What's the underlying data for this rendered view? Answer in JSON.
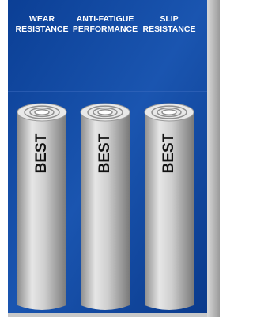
{
  "columns": [
    {
      "title": [
        "WEAR",
        "RESISTANCE"
      ],
      "label": "BEST"
    },
    {
      "title": [
        "ANTI-FATIGUE",
        "PERFORMANCE"
      ],
      "label": "BEST"
    },
    {
      "title": [
        "SLIP",
        "RESISTANCE"
      ],
      "label": "BEST"
    }
  ]
}
